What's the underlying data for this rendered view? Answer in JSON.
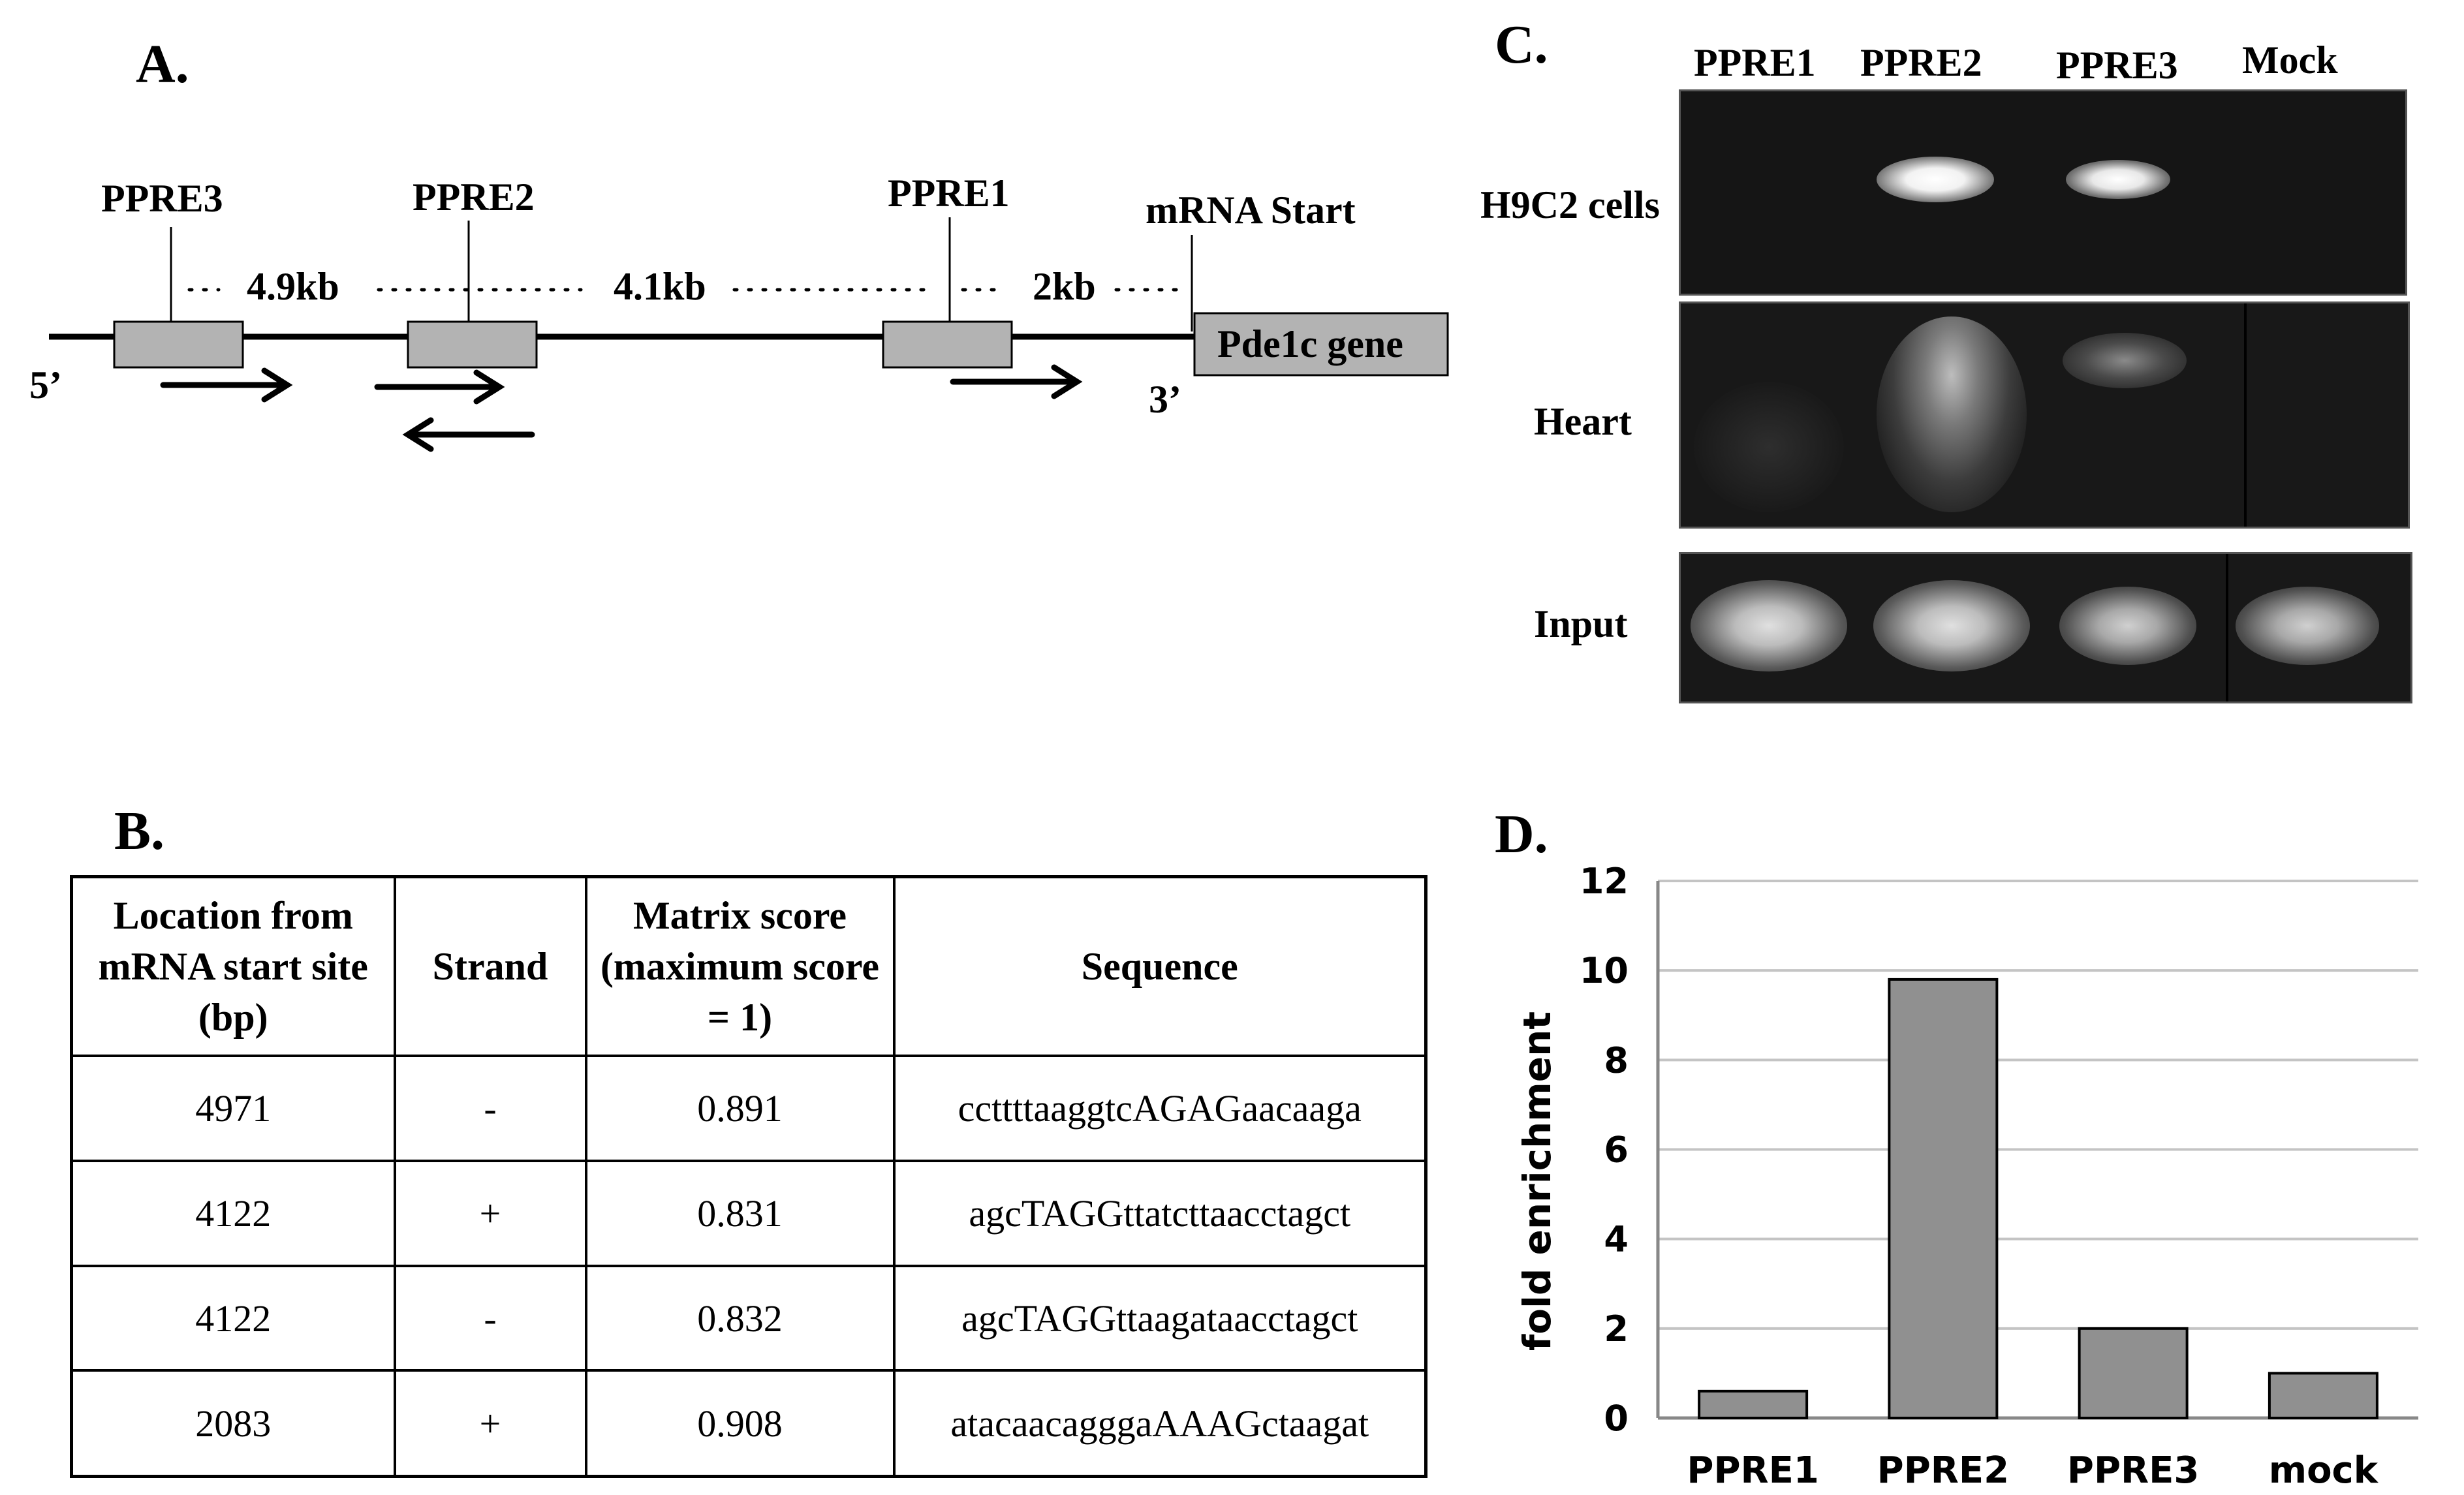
{
  "panels": {
    "a": "A.",
    "b": "B.",
    "c": "C.",
    "d": "D."
  },
  "diagram": {
    "ppre_labels": [
      "PPRE3",
      "PPRE2",
      "PPRE1"
    ],
    "mrna_start": "mRNA Start",
    "distances": [
      "4.9kb",
      "4.1kb",
      "2kb"
    ],
    "gene_label": "Pde1c gene",
    "five_prime": "5’",
    "three_prime": "3’"
  },
  "table": {
    "headers": [
      "Location from mRNA start site (bp)",
      "Strand",
      "Matrix score (maximum score = 1)",
      "Sequence"
    ],
    "rows": [
      [
        "4971",
        "-",
        "0.891",
        "ccttttaaggtcAGAGaacaaga"
      ],
      [
        "4122",
        "+",
        "0.831",
        "agcTAGGttatcttaacctagct"
      ],
      [
        "4122",
        "-",
        "0.832",
        "agcTAGGttaagataacctagct"
      ],
      [
        "2083",
        "+",
        "0.908",
        "atacaacagggaAAAGctaagat"
      ]
    ]
  },
  "gel": {
    "lanes": [
      "PPRE1",
      "PPRE2",
      "PPRE3",
      "Mock"
    ],
    "rows": [
      "H9C2 cells",
      "Heart",
      "Input"
    ]
  },
  "chart_data": {
    "type": "bar",
    "categories": [
      "PPRE1",
      "PPRE2",
      "PPRE3",
      "mock"
    ],
    "values": [
      0.6,
      9.8,
      2.0,
      1.0
    ],
    "ylabel": "fold enrichment",
    "ylim": [
      0,
      12
    ],
    "yticks": [
      0,
      2,
      4,
      6,
      8,
      10,
      12
    ],
    "grid": true,
    "bar_color": "#909090"
  }
}
